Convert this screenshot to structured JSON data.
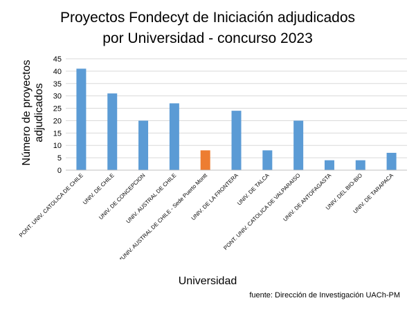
{
  "chart_data": {
    "type": "bar",
    "title_lines": [
      "Proyectos Fondecyt de Iniciación adjudicados",
      "por Universidad - concurso 2023"
    ],
    "ylabel_lines": [
      "Número de proyectos",
      "adjudicados"
    ],
    "xlabel": "Universidad",
    "source": "fuente: Dirección de Investigación UACh-PM",
    "ylim": [
      0,
      45
    ],
    "yticks": [
      "0",
      "5",
      "10",
      "15",
      "20",
      "25",
      "30",
      "35",
      "40",
      "45"
    ],
    "grid": true,
    "categories": [
      "PONT. UNIV. CATOLICA DE CHILE",
      "UNIV. DE CHILE",
      "UNIV. DE CONCEPCION",
      "UNIV. AUSTRAL DE CHILE",
      "*UNIV. AUSTRAL DE CHILE - Sede Puerto Montt",
      "UNIV. DE LA FRONTERA",
      "UNIV. DE TALCA",
      "PONT. UNIV. CATOLICA DE VALPARAISO",
      "UNIV. DE ANTOFAGASTA",
      "UNIV. DEL BIO-BIO",
      "UNIV. DE TARAPACA"
    ],
    "values": [
      41,
      31,
      20,
      27,
      8,
      24,
      8,
      20,
      4,
      4,
      7
    ],
    "colors": {
      "default": "#5b9bd5",
      "highlight": "#ed7d31",
      "highlight_index": 4,
      "grid": "#d9d9d9",
      "axis": "#bfbfbf"
    }
  }
}
